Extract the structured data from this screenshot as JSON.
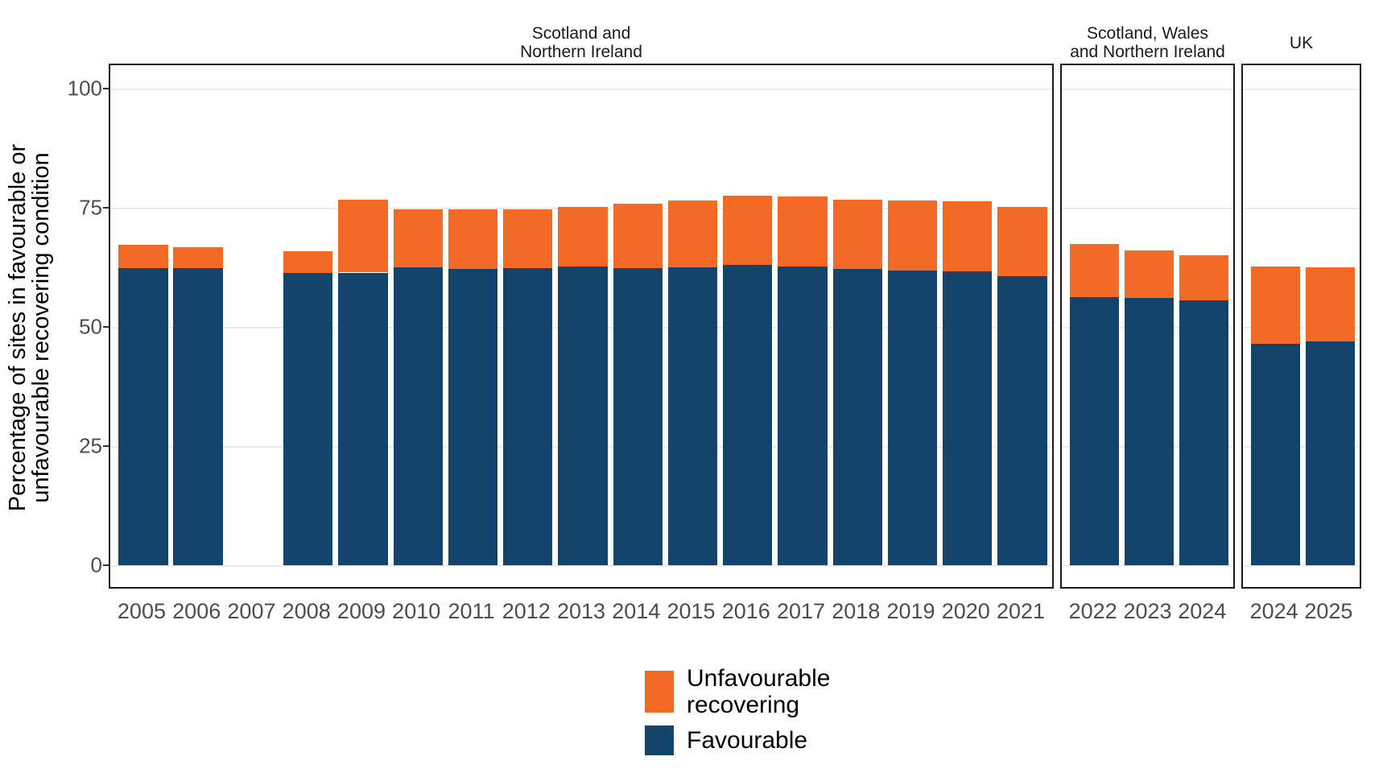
{
  "figure": {
    "y_axis_title_line1": "Percentage of sites in favourable or",
    "y_axis_title_line2": "unfavourable recovering condition",
    "colors": {
      "favourable": "#14446B",
      "unfavourable_recovering": "#F36A26",
      "panel_border": "#1a1a1a",
      "gridline": "#ebebeb",
      "axis_text": "#4d4d4d"
    },
    "legend_items": [
      {
        "name": "unfavourable-recovering",
        "lines": [
          "Unfavourable",
          "recovering"
        ],
        "color": "#F36A26"
      },
      {
        "name": "favourable",
        "lines": [
          "Favourable"
        ],
        "color": "#14446B"
      }
    ]
  },
  "chart_data": {
    "type": "bar",
    "stacked": true,
    "title": "",
    "xlabel": "",
    "ylabel": "Percentage of sites in favourable or unfavourable recovering condition",
    "ylim": [
      0,
      100
    ],
    "yticks": [
      0,
      25,
      50,
      75,
      100
    ],
    "grid": "horizontal-only",
    "legend_position": "bottom",
    "legend": [
      "Unfavourable recovering",
      "Favourable"
    ],
    "series_colors": {
      "Favourable": "#14446B",
      "Unfavourable recovering": "#F36A26"
    },
    "panels": [
      {
        "title_lines": [
          "Scotland and",
          "Northern Ireland"
        ],
        "categories": [
          "2005",
          "2006",
          "2007",
          "2008",
          "2009",
          "2010",
          "2011",
          "2012",
          "2013",
          "2014",
          "2015",
          "2016",
          "2017",
          "2018",
          "2019",
          "2020",
          "2021"
        ],
        "series": [
          {
            "name": "Favourable",
            "values": [
              62.4,
              62.3,
              null,
              61.3,
              61.4,
              62.5,
              62.2,
              62.3,
              62.6,
              62.4,
              62.5,
              63.0,
              62.7,
              62.1,
              61.8,
              61.7,
              60.6
            ]
          },
          {
            "name": "Unfavourable recovering",
            "values": [
              4.8,
              4.4,
              null,
              4.6,
              15.3,
              12.1,
              12.4,
              12.4,
              12.6,
              13.4,
              14.1,
              14.5,
              14.6,
              14.6,
              14.7,
              14.6,
              14.5
            ]
          }
        ]
      },
      {
        "title_lines": [
          "Scotland, Wales",
          "and Northern Ireland"
        ],
        "categories": [
          "2022",
          "2023",
          "2024"
        ],
        "series": [
          {
            "name": "Favourable",
            "values": [
              56.2,
              56.0,
              55.5
            ]
          },
          {
            "name": "Unfavourable recovering",
            "values": [
              11.2,
              10.0,
              9.5
            ]
          }
        ]
      },
      {
        "title_lines": [
          "UK"
        ],
        "categories": [
          "2024",
          "2025"
        ],
        "series": [
          {
            "name": "Favourable",
            "values": [
              46.5,
              46.9
            ]
          },
          {
            "name": "Unfavourable recovering",
            "values": [
              16.2,
              15.6
            ]
          }
        ]
      }
    ]
  }
}
